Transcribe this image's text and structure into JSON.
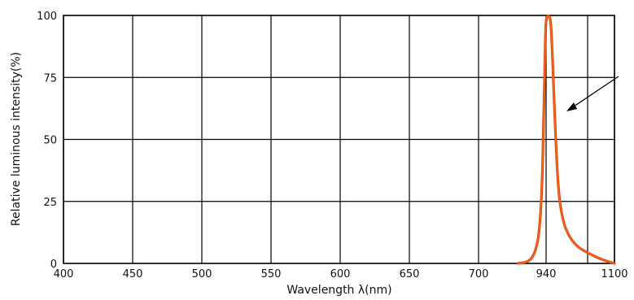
{
  "chart_data": {
    "type": "line",
    "title": "",
    "xlabel": "Wavelength  λ(nm)",
    "ylabel": "Relative luminous intensity(%)",
    "x_tick_labels": [
      "400",
      "450",
      "500",
      "550",
      "600",
      "650",
      "700",
      "940",
      "1100"
    ],
    "y_tick_labels": [
      "0",
      "25",
      "50",
      "75",
      "100"
    ],
    "ylim": [
      0,
      100
    ],
    "grid": true,
    "series": [
      {
        "color": "#e0561a",
        "points": [
          {
            "x": 840,
            "y": 0
          },
          {
            "x": 870,
            "y": 0.5
          },
          {
            "x": 890,
            "y": 2
          },
          {
            "x": 905,
            "y": 6
          },
          {
            "x": 915,
            "y": 12
          },
          {
            "x": 925,
            "y": 28
          },
          {
            "x": 932,
            "y": 60
          },
          {
            "x": 937,
            "y": 90
          },
          {
            "x": 940,
            "y": 99
          },
          {
            "x": 945,
            "y": 100
          },
          {
            "x": 950,
            "y": 99
          },
          {
            "x": 953,
            "y": 92
          },
          {
            "x": 960,
            "y": 60
          },
          {
            "x": 968,
            "y": 30
          },
          {
            "x": 978,
            "y": 18
          },
          {
            "x": 990,
            "y": 12
          },
          {
            "x": 1010,
            "y": 7
          },
          {
            "x": 1040,
            "y": 4
          },
          {
            "x": 1070,
            "y": 1.5
          },
          {
            "x": 1100,
            "y": 0
          }
        ]
      }
    ]
  }
}
